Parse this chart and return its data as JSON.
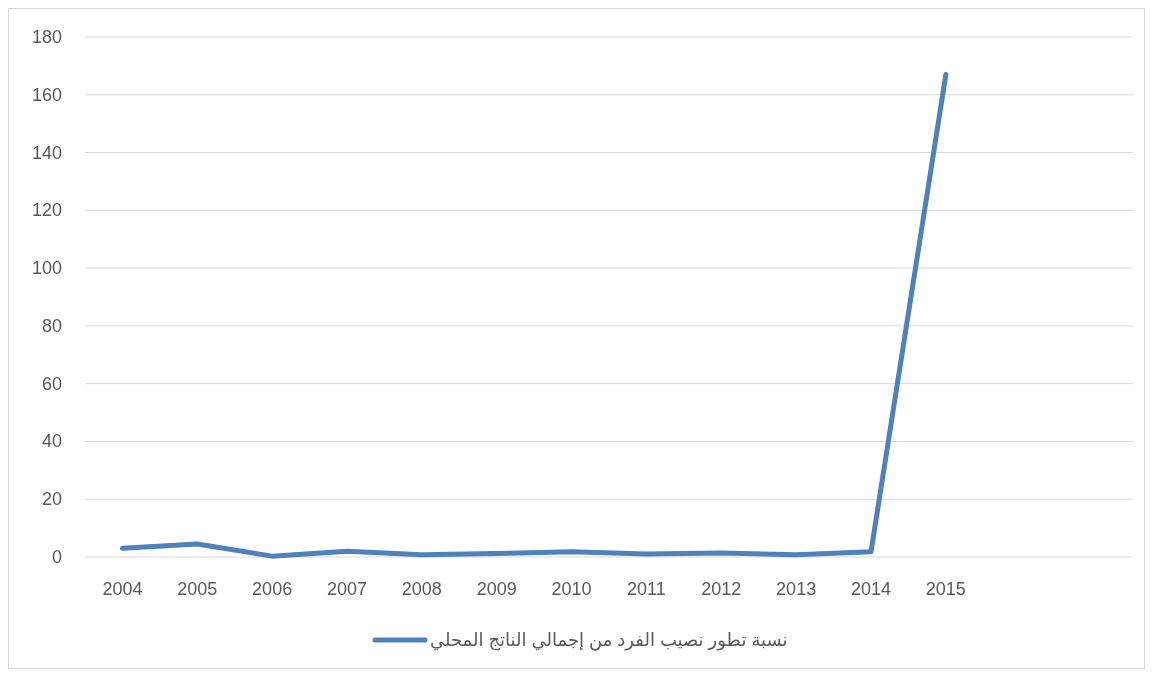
{
  "chart_data": {
    "type": "line",
    "categories": [
      "2004",
      "2005",
      "2006",
      "2007",
      "2008",
      "2009",
      "2010",
      "2011",
      "2012",
      "2013",
      "2014",
      "2015",
      null,
      null
    ],
    "series": [
      {
        "name": "نسبة تطور نصيب الفرد من إجمالي الناتج المحلي",
        "color": "#4f81bd",
        "values": [
          3,
          4.5,
          0.3,
          2,
          0.8,
          1.2,
          1.8,
          1,
          1.4,
          0.8,
          1.8,
          167,
          null,
          null
        ]
      }
    ],
    "ylim": [
      0,
      180
    ],
    "yticks": [
      0,
      20,
      40,
      60,
      80,
      100,
      120,
      140,
      160,
      180
    ],
    "grid": "y",
    "legend": "bottom"
  }
}
